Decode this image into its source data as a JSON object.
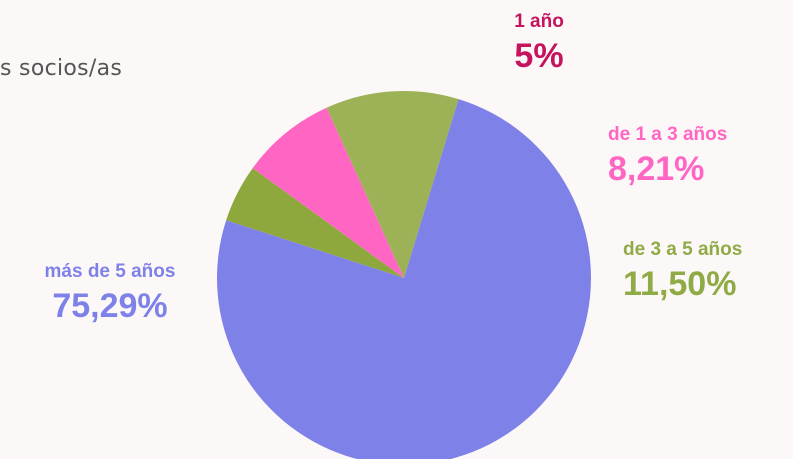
{
  "heading": "s  socios/as",
  "chart_data": {
    "type": "pie",
    "slices": [
      {
        "label": "1 año",
        "display": "5%",
        "value": 5.0,
        "color": "#8ea83e",
        "label_color": "#c5135e"
      },
      {
        "label": "de 1 a 3 años",
        "display": "8,21%",
        "value": 8.21,
        "color": "#ff66c4",
        "label_color": "#ff66c4"
      },
      {
        "label": "de 3 a 5 años",
        "display": "11,50%",
        "value": 11.5,
        "color": "#9db256",
        "label_color": "#8fab46"
      },
      {
        "label": "más de 5 años",
        "display": "75,29%",
        "value": 75.29,
        "color": "#7e82e8",
        "label_color": "#7e82e8"
      }
    ]
  }
}
